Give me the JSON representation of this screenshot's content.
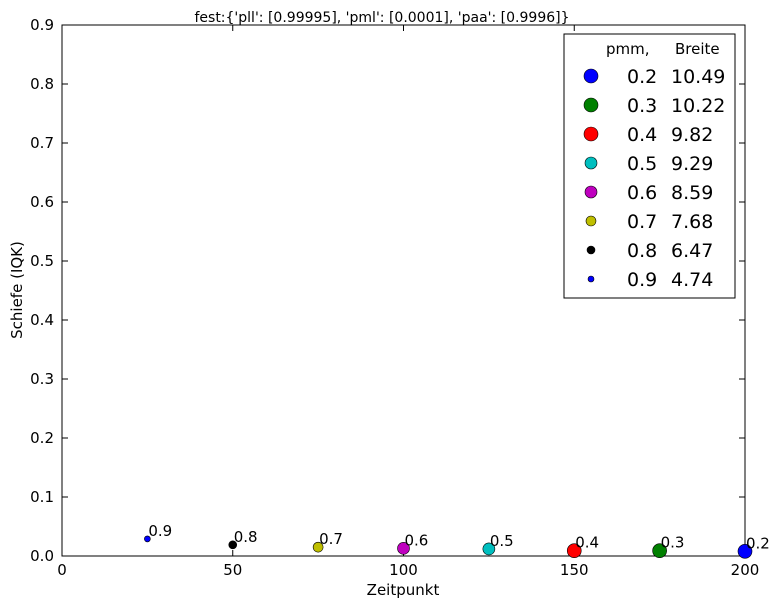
{
  "chart_data": {
    "type": "scatter",
    "title": "fest:{'pll': [0.99995], 'pml': [0.0001], 'paa': [0.9996]}",
    "xlabel": "Zeitpunkt",
    "ylabel": "Schiefe (IQK)",
    "xlim": [
      0,
      200
    ],
    "ylim": [
      0,
      0.9
    ],
    "xticks": [
      "0",
      "50",
      "100",
      "150",
      "200"
    ],
    "yticks": [
      "0.0",
      "0.1",
      "0.2",
      "0.3",
      "0.4",
      "0.5",
      "0.6",
      "0.7",
      "0.8",
      "0.9"
    ],
    "grid": false,
    "legend": {
      "placement": "top-right",
      "header_col1": "pmm,",
      "header_col2": "Breite"
    },
    "series": [
      {
        "name": "0.2",
        "breite": "10.49",
        "label": "0.2",
        "color": "#0000ff",
        "x": 200,
        "y": 0.008
      },
      {
        "name": "0.3",
        "breite": "10.22",
        "label": "0.3",
        "color": "#008000",
        "x": 175,
        "y": 0.009
      },
      {
        "name": "0.4",
        "breite": "9.82",
        "label": "0.4",
        "color": "#ff0000",
        "x": 150,
        "y": 0.009
      },
      {
        "name": "0.5",
        "breite": "9.29",
        "label": "0.5",
        "color": "#00bfbf",
        "x": 125,
        "y": 0.012
      },
      {
        "name": "0.6",
        "breite": "8.59",
        "label": "0.6",
        "color": "#bf00bf",
        "x": 100,
        "y": 0.013
      },
      {
        "name": "0.7",
        "breite": "7.68",
        "label": "0.7",
        "color": "#bfbf00",
        "x": 75,
        "y": 0.015
      },
      {
        "name": "0.8",
        "breite": "6.47",
        "label": "0.8",
        "color": "#000000",
        "x": 50,
        "y": 0.019
      },
      {
        "name": "0.9",
        "breite": "4.74",
        "label": "0.9",
        "color": "#0000ff",
        "x": 25,
        "y": 0.029
      }
    ]
  }
}
